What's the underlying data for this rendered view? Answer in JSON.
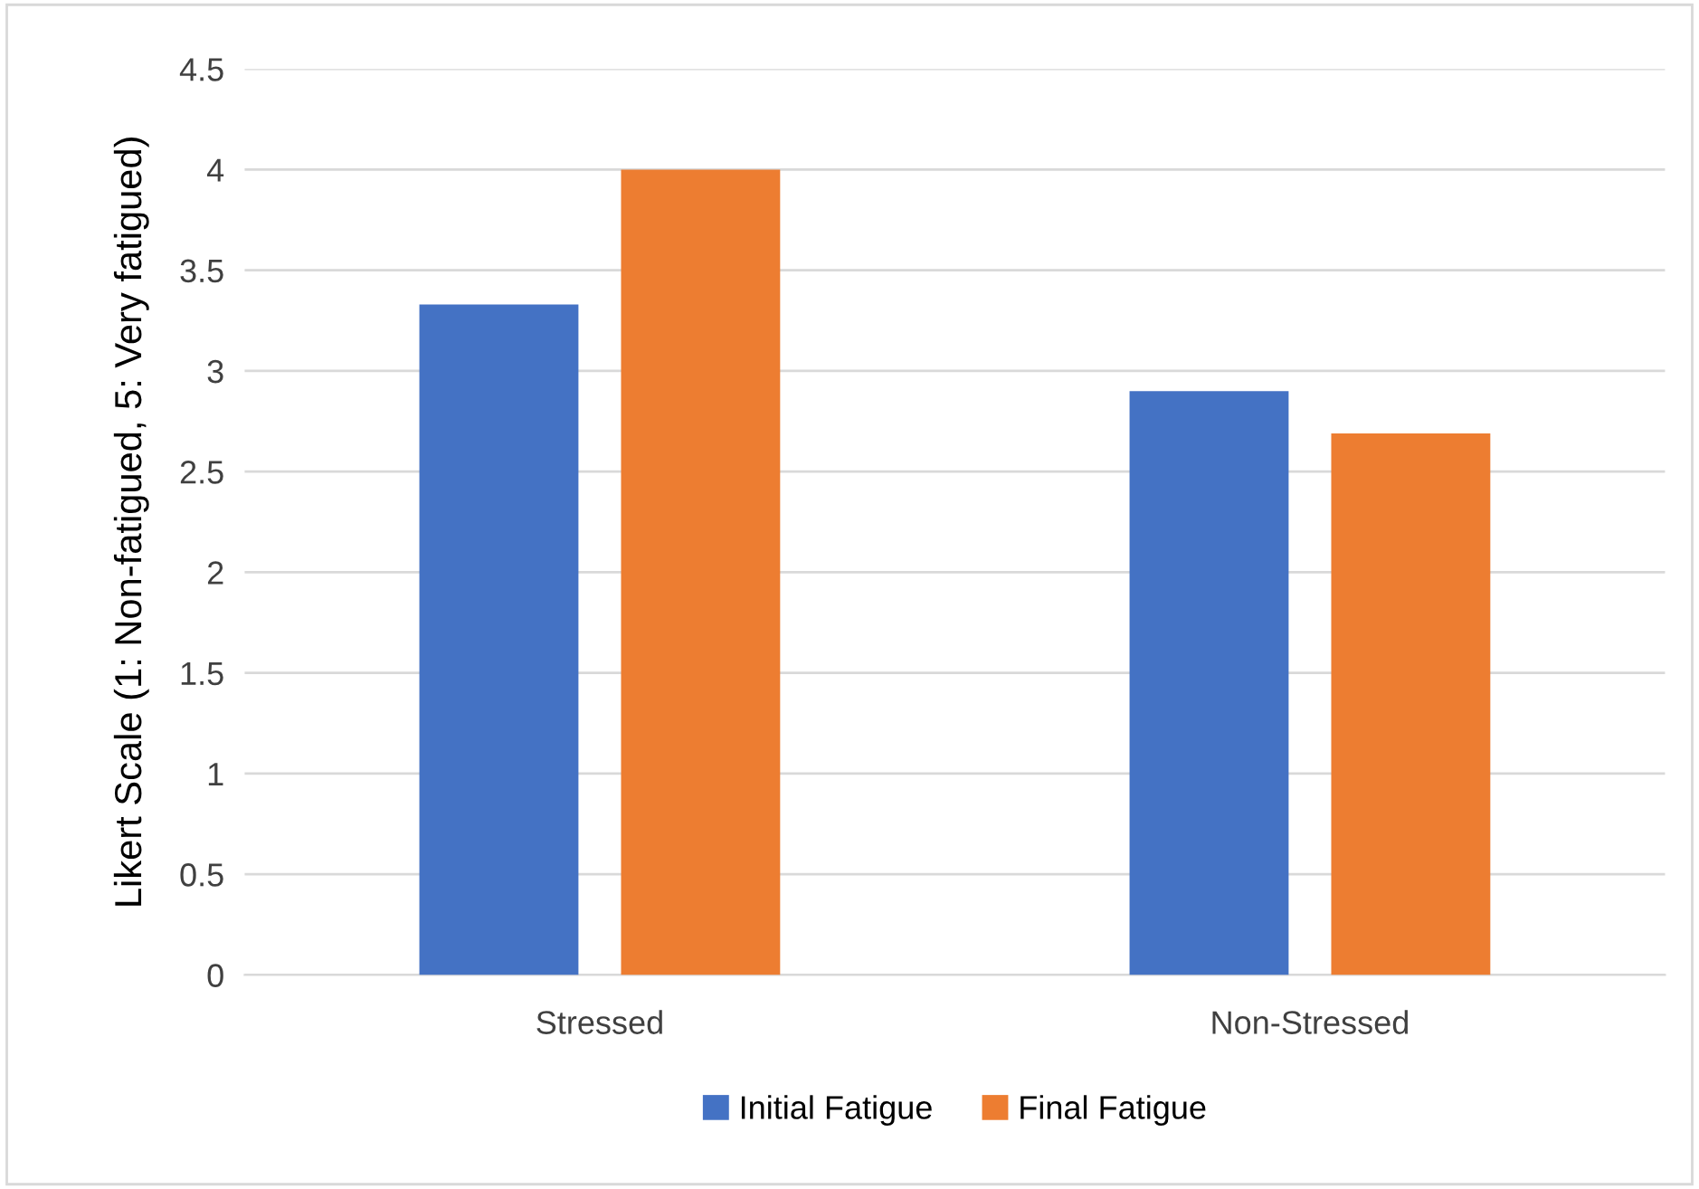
{
  "chart_data": {
    "type": "bar",
    "ylabel": "Likert Scale (1: Non-fatigued, 5: Very fatigued)",
    "categories": [
      "Stressed",
      "Non-Stressed"
    ],
    "series": [
      {
        "name": "Initial Fatigue",
        "color": "#4472c4",
        "values": [
          3.33,
          2.9
        ]
      },
      {
        "name": "Final Fatigue",
        "color": "#ed7d31",
        "values": [
          4.0,
          2.69
        ]
      }
    ],
    "ylim": [
      0,
      4.5
    ],
    "yticks": [
      0,
      0.5,
      1,
      1.5,
      2,
      2.5,
      3,
      3.5,
      4,
      4.5
    ],
    "grid": "y",
    "legend": "bottom"
  }
}
